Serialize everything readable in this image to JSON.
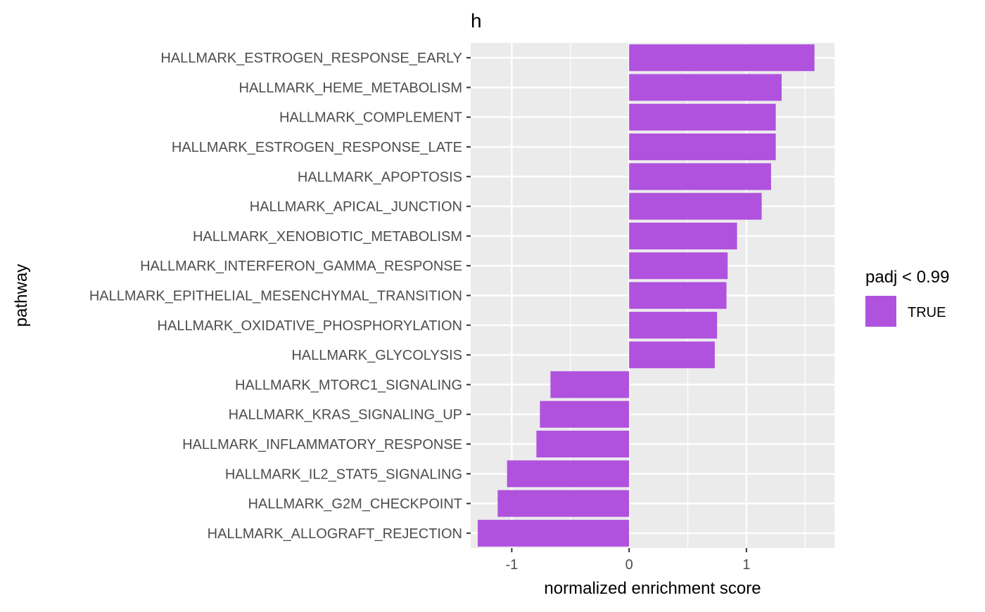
{
  "chart_data": {
    "type": "bar",
    "orientation": "horizontal",
    "title": "h",
    "xlabel": "normalized enrichment score",
    "ylabel": "pathway",
    "xlim": [
      -1.35,
      1.75
    ],
    "xticks": [
      -1,
      0,
      1
    ],
    "xtick_labels": [
      "-1",
      "0",
      "1"
    ],
    "grid": true,
    "legend": {
      "title": "padj < 0.99",
      "placement": "right",
      "entries": [
        {
          "label": "TRUE",
          "color": "#B052DE"
        }
      ]
    },
    "bar_color": "#B052DE",
    "panel_color": "#EBEBEB",
    "categories": [
      "HALLMARK_ESTROGEN_RESPONSE_EARLY",
      "HALLMARK_HEME_METABOLISM",
      "HALLMARK_COMPLEMENT",
      "HALLMARK_ESTROGEN_RESPONSE_LATE",
      "HALLMARK_APOPTOSIS",
      "HALLMARK_APICAL_JUNCTION",
      "HALLMARK_XENOBIOTIC_METABOLISM",
      "HALLMARK_INTERFERON_GAMMA_RESPONSE",
      "HALLMARK_EPITHELIAL_MESENCHYMAL_TRANSITION",
      "HALLMARK_OXIDATIVE_PHOSPHORYLATION",
      "HALLMARK_GLYCOLYSIS",
      "HALLMARK_MTORC1_SIGNALING",
      "HALLMARK_KRAS_SIGNALING_UP",
      "HALLMARK_INFLAMMATORY_RESPONSE",
      "HALLMARK_IL2_STAT5_SIGNALING",
      "HALLMARK_G2M_CHECKPOINT",
      "HALLMARK_ALLOGRAFT_REJECTION"
    ],
    "values": [
      1.58,
      1.3,
      1.25,
      1.25,
      1.21,
      1.13,
      0.92,
      0.84,
      0.83,
      0.75,
      0.73,
      -0.67,
      -0.76,
      -0.79,
      -1.04,
      -1.12,
      -1.29
    ]
  }
}
